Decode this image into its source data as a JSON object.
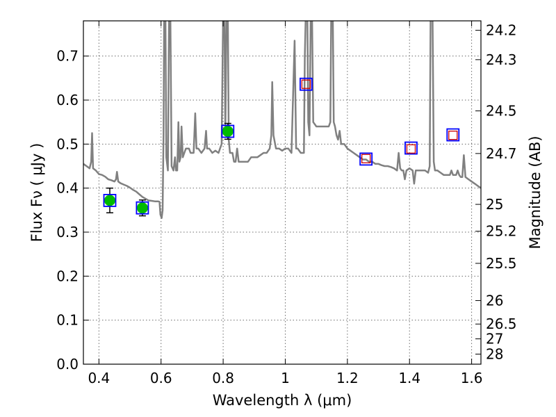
{
  "chart_data": {
    "type": "scatter",
    "title": "",
    "xlabel": "Wavelength  λ (μm)",
    "ylabel": "Flux  Fν  ( μJy )",
    "y2label": "Magnitude (AB)",
    "xlim": [
      0.35,
      1.63
    ],
    "ylim": [
      0.0,
      0.78
    ],
    "grid": true,
    "x_ticks": [
      {
        "value": 0.4,
        "label": "0.4"
      },
      {
        "value": 0.6,
        "label": "0.6"
      },
      {
        "value": 0.8,
        "label": "0.8"
      },
      {
        "value": 1.0,
        "label": "1"
      },
      {
        "value": 1.2,
        "label": "1.2"
      },
      {
        "value": 1.4,
        "label": "1.4"
      },
      {
        "value": 1.6,
        "label": "1.6"
      }
    ],
    "y_ticks": [
      {
        "value": 0.0,
        "label": "0.0"
      },
      {
        "value": 0.1,
        "label": "0.1"
      },
      {
        "value": 0.2,
        "label": "0.2"
      },
      {
        "value": 0.3,
        "label": "0.3"
      },
      {
        "value": 0.4,
        "label": "0.4"
      },
      {
        "value": 0.5,
        "label": "0.5"
      },
      {
        "value": 0.6,
        "label": "0.6"
      },
      {
        "value": 0.7,
        "label": "0.7"
      }
    ],
    "y2_ticks": [
      {
        "label": "24.2"
      },
      {
        "label": "24.3"
      },
      {
        "label": "24.5"
      },
      {
        "label": "24.7"
      },
      {
        "label": "25"
      },
      {
        "label": "25.2"
      },
      {
        "label": "25.5"
      },
      {
        "label": "26"
      },
      {
        "label": "26.5"
      },
      {
        "label": "27"
      },
      {
        "label": "28"
      }
    ],
    "series": [
      {
        "marker": "circle",
        "color": "#00bb00",
        "points": [
          {
            "x": 0.435,
            "y": 0.372,
            "err": 0.028
          },
          {
            "x": 0.54,
            "y": 0.355,
            "err": 0.018
          },
          {
            "x": 0.815,
            "y": 0.529,
            "err": 0.018
          }
        ]
      },
      {
        "marker": "square-open",
        "color": "#0000ff",
        "points": [
          {
            "x": 0.435,
            "y": 0.372
          },
          {
            "x": 0.54,
            "y": 0.355
          },
          {
            "x": 0.815,
            "y": 0.529
          },
          {
            "x": 1.067,
            "y": 0.636
          },
          {
            "x": 1.26,
            "y": 0.466
          },
          {
            "x": 1.405,
            "y": 0.491
          },
          {
            "x": 1.54,
            "y": 0.521
          }
        ]
      },
      {
        "marker": "square-open-small",
        "color": "#cc0000",
        "points": [
          {
            "x": 1.067,
            "y": 0.636
          },
          {
            "x": 1.26,
            "y": 0.467
          },
          {
            "x": 1.405,
            "y": 0.489
          },
          {
            "x": 1.54,
            "y": 0.52
          }
        ]
      },
      {
        "marker": "line",
        "color": "#808080",
        "points": [
          [
            0.35,
            0.455
          ],
          [
            0.36,
            0.45
          ],
          [
            0.37,
            0.445
          ],
          [
            0.375,
            0.46
          ],
          [
            0.378,
            0.525
          ],
          [
            0.381,
            0.445
          ],
          [
            0.39,
            0.44
          ],
          [
            0.4,
            0.432
          ],
          [
            0.41,
            0.43
          ],
          [
            0.42,
            0.426
          ],
          [
            0.43,
            0.42
          ],
          [
            0.44,
            0.418
          ],
          [
            0.45,
            0.415
          ],
          [
            0.455,
            0.42
          ],
          [
            0.458,
            0.437
          ],
          [
            0.462,
            0.415
          ],
          [
            0.47,
            0.411
          ],
          [
            0.48,
            0.408
          ],
          [
            0.49,
            0.405
          ],
          [
            0.5,
            0.401
          ],
          [
            0.51,
            0.396
          ],
          [
            0.52,
            0.392
          ],
          [
            0.53,
            0.386
          ],
          [
            0.54,
            0.38
          ],
          [
            0.55,
            0.376
          ],
          [
            0.56,
            0.372
          ],
          [
            0.57,
            0.371
          ],
          [
            0.58,
            0.37
          ],
          [
            0.59,
            0.37
          ],
          [
            0.595,
            0.369
          ],
          [
            0.598,
            0.34
          ],
          [
            0.602,
            0.332
          ],
          [
            0.605,
            0.35
          ],
          [
            0.608,
            0.52
          ],
          [
            0.61,
            0.8
          ],
          [
            0.614,
            0.8
          ],
          [
            0.617,
            0.47
          ],
          [
            0.622,
            0.44
          ],
          [
            0.626,
            0.8
          ],
          [
            0.63,
            0.8
          ],
          [
            0.634,
            0.45
          ],
          [
            0.64,
            0.44
          ],
          [
            0.645,
            0.47
          ],
          [
            0.648,
            0.44
          ],
          [
            0.652,
            0.44
          ],
          [
            0.656,
            0.55
          ],
          [
            0.659,
            0.46
          ],
          [
            0.663,
            0.47
          ],
          [
            0.666,
            0.54
          ],
          [
            0.67,
            0.47
          ],
          [
            0.675,
            0.48
          ],
          [
            0.68,
            0.49
          ],
          [
            0.685,
            0.49
          ],
          [
            0.69,
            0.49
          ],
          [
            0.695,
            0.48
          ],
          [
            0.7,
            0.48
          ],
          [
            0.705,
            0.48
          ],
          [
            0.71,
            0.57
          ],
          [
            0.714,
            0.49
          ],
          [
            0.72,
            0.49
          ],
          [
            0.73,
            0.48
          ],
          [
            0.74,
            0.49
          ],
          [
            0.745,
            0.53
          ],
          [
            0.748,
            0.49
          ],
          [
            0.755,
            0.49
          ],
          [
            0.765,
            0.48
          ],
          [
            0.775,
            0.485
          ],
          [
            0.785,
            0.48
          ],
          [
            0.79,
            0.49
          ],
          [
            0.795,
            0.5
          ],
          [
            0.8,
            0.8
          ],
          [
            0.804,
            0.8
          ],
          [
            0.807,
            0.52
          ],
          [
            0.811,
            0.8
          ],
          [
            0.815,
            0.8
          ],
          [
            0.818,
            0.51
          ],
          [
            0.822,
            0.48
          ],
          [
            0.83,
            0.48
          ],
          [
            0.835,
            0.46
          ],
          [
            0.84,
            0.46
          ],
          [
            0.845,
            0.49
          ],
          [
            0.85,
            0.46
          ],
          [
            0.86,
            0.46
          ],
          [
            0.87,
            0.46
          ],
          [
            0.88,
            0.46
          ],
          [
            0.89,
            0.47
          ],
          [
            0.9,
            0.47
          ],
          [
            0.91,
            0.47
          ],
          [
            0.92,
            0.475
          ],
          [
            0.93,
            0.48
          ],
          [
            0.94,
            0.48
          ],
          [
            0.95,
            0.49
          ],
          [
            0.955,
            0.52
          ],
          [
            0.958,
            0.641
          ],
          [
            0.962,
            0.52
          ],
          [
            0.97,
            0.49
          ],
          [
            0.98,
            0.49
          ],
          [
            0.99,
            0.485
          ],
          [
            1.0,
            0.49
          ],
          [
            1.01,
            0.49
          ],
          [
            1.02,
            0.48
          ],
          [
            1.03,
            0.735
          ],
          [
            1.035,
            0.49
          ],
          [
            1.04,
            0.49
          ],
          [
            1.05,
            0.48
          ],
          [
            1.06,
            0.48
          ],
          [
            1.063,
            0.7
          ],
          [
            1.066,
            0.8
          ],
          [
            1.071,
            0.8
          ],
          [
            1.074,
            0.55
          ],
          [
            1.078,
            0.52
          ],
          [
            1.082,
            0.8
          ],
          [
            1.086,
            0.8
          ],
          [
            1.09,
            0.55
          ],
          [
            1.1,
            0.54
          ],
          [
            1.11,
            0.54
          ],
          [
            1.12,
            0.54
          ],
          [
            1.13,
            0.54
          ],
          [
            1.14,
            0.54
          ],
          [
            1.145,
            0.55
          ],
          [
            1.148,
            0.8
          ],
          [
            1.153,
            0.8
          ],
          [
            1.156,
            0.55
          ],
          [
            1.16,
            0.54
          ],
          [
            1.165,
            0.52
          ],
          [
            1.17,
            0.51
          ],
          [
            1.175,
            0.53
          ],
          [
            1.18,
            0.5
          ],
          [
            1.19,
            0.5
          ],
          [
            1.2,
            0.49
          ],
          [
            1.21,
            0.485
          ],
          [
            1.22,
            0.48
          ],
          [
            1.23,
            0.475
          ],
          [
            1.24,
            0.47
          ],
          [
            1.25,
            0.465
          ],
          [
            1.26,
            0.465
          ],
          [
            1.27,
            0.46
          ],
          [
            1.28,
            0.46
          ],
          [
            1.29,
            0.455
          ],
          [
            1.3,
            0.455
          ],
          [
            1.31,
            0.452
          ],
          [
            1.32,
            0.45
          ],
          [
            1.33,
            0.45
          ],
          [
            1.34,
            0.448
          ],
          [
            1.35,
            0.445
          ],
          [
            1.36,
            0.44
          ],
          [
            1.365,
            0.48
          ],
          [
            1.37,
            0.445
          ],
          [
            1.375,
            0.44
          ],
          [
            1.38,
            0.44
          ],
          [
            1.385,
            0.42
          ],
          [
            1.39,
            0.44
          ],
          [
            1.4,
            0.445
          ],
          [
            1.41,
            0.44
          ],
          [
            1.415,
            0.41
          ],
          [
            1.42,
            0.44
          ],
          [
            1.43,
            0.44
          ],
          [
            1.44,
            0.44
          ],
          [
            1.45,
            0.44
          ],
          [
            1.46,
            0.435
          ],
          [
            1.465,
            0.45
          ],
          [
            1.468,
            0.8
          ],
          [
            1.474,
            0.8
          ],
          [
            1.478,
            0.46
          ],
          [
            1.482,
            0.44
          ],
          [
            1.49,
            0.44
          ],
          [
            1.5,
            0.435
          ],
          [
            1.51,
            0.43
          ],
          [
            1.52,
            0.43
          ],
          [
            1.53,
            0.43
          ],
          [
            1.535,
            0.44
          ],
          [
            1.54,
            0.43
          ],
          [
            1.55,
            0.43
          ],
          [
            1.555,
            0.44
          ],
          [
            1.56,
            0.43
          ],
          [
            1.565,
            0.425
          ],
          [
            1.57,
            0.425
          ],
          [
            1.575,
            0.475
          ],
          [
            1.58,
            0.425
          ],
          [
            1.59,
            0.42
          ],
          [
            1.6,
            0.415
          ],
          [
            1.61,
            0.41
          ],
          [
            1.62,
            0.405
          ],
          [
            1.63,
            0.4
          ]
        ]
      }
    ]
  }
}
